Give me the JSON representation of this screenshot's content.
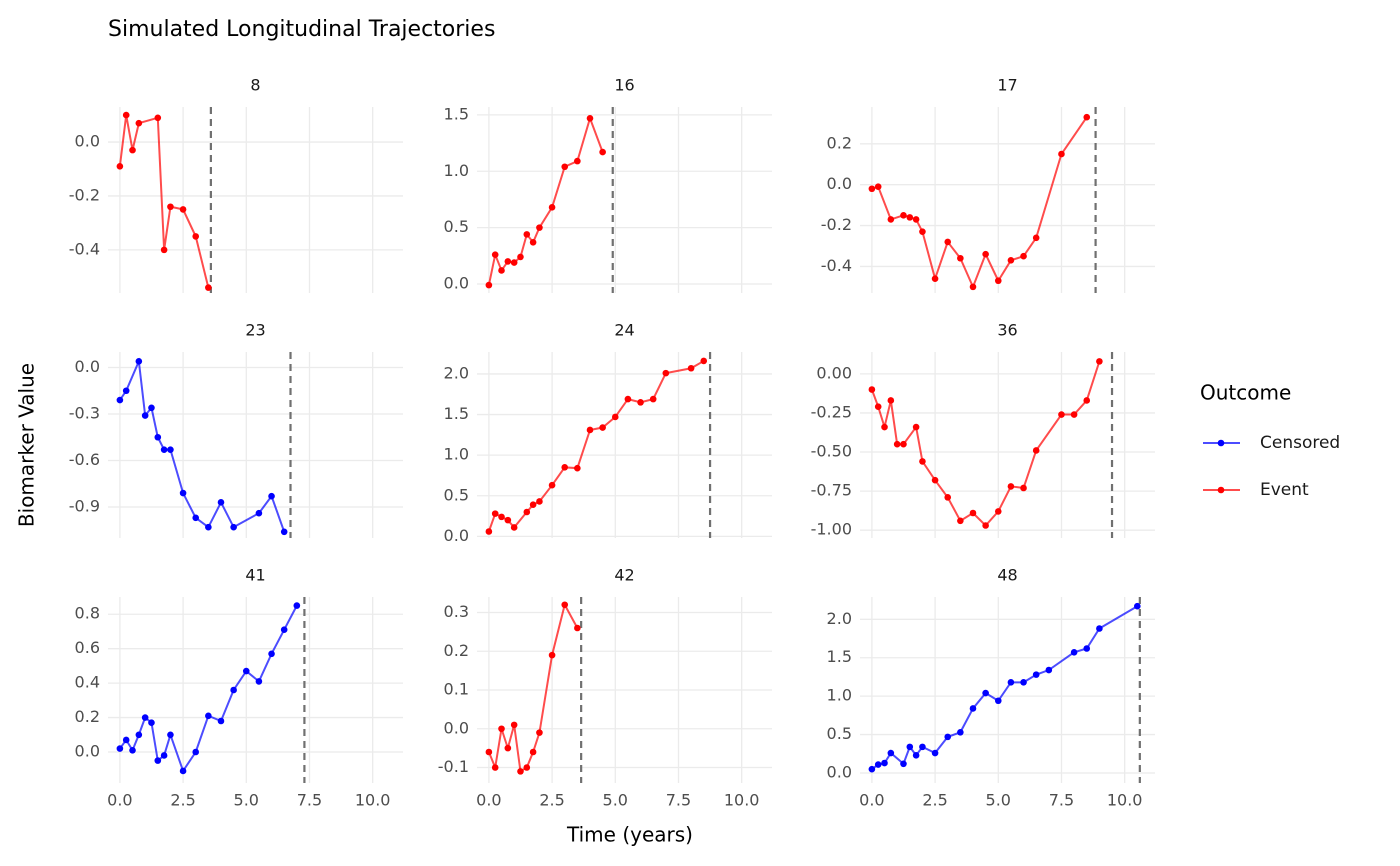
{
  "title": "Simulated Longitudinal Trajectories",
  "x_label": "Time (years)",
  "y_label": "Biomarker Value",
  "legend": {
    "title": "Outcome",
    "entries": [
      {
        "name": "Censored",
        "color": "#0000ff"
      },
      {
        "name": "Event",
        "color": "#ff0000"
      }
    ]
  },
  "chart_data": [
    {
      "type": "line",
      "title": "8",
      "x": [
        0,
        0.25,
        0.5,
        0.75,
        1.5,
        1.75,
        2,
        2.5,
        3,
        3.5
      ],
      "series": [
        {
          "name": "Event",
          "color": "#ff0000",
          "values": [
            -0.09,
            0.1,
            -0.03,
            0.07,
            0.09,
            -0.4,
            -0.24,
            -0.25,
            -0.35,
            -0.54
          ]
        }
      ],
      "event_time": 3.6,
      "xlim": [
        -0.47,
        11.2
      ],
      "xticks": [
        {
          "value": 0,
          "label": "0.0"
        },
        {
          "value": 2.5,
          "label": "2.5"
        },
        {
          "value": 5,
          "label": "5.0"
        },
        {
          "value": 7.5,
          "label": "7.5"
        },
        {
          "value": 10,
          "label": "10.0"
        }
      ],
      "ylim": [
        -0.56,
        0.13
      ],
      "yticks": [
        {
          "value": 0,
          "label": "0.0"
        },
        -0.2,
        -0.4
      ],
      "grid": true
    },
    {
      "type": "line",
      "title": "16",
      "x": [
        0,
        0.25,
        0.5,
        0.75,
        1,
        1.25,
        1.5,
        1.75,
        2,
        2.5,
        3,
        3.5,
        4,
        4.5
      ],
      "series": [
        {
          "name": "Event",
          "color": "#ff0000",
          "values": [
            -0.01,
            0.26,
            0.12,
            0.2,
            0.19,
            0.24,
            0.44,
            0.37,
            0.5,
            0.68,
            1.04,
            1.09,
            1.47,
            1.17
          ]
        }
      ],
      "event_time": 4.9,
      "xlim": [
        -0.47,
        11.2
      ],
      "xticks": [
        {
          "value": 0,
          "label": "0.0"
        },
        {
          "value": 2.5,
          "label": "2.5"
        },
        {
          "value": 5,
          "label": "5.0"
        },
        {
          "value": 7.5,
          "label": "7.5"
        },
        {
          "value": 10,
          "label": "10.0"
        }
      ],
      "ylim": [
        -0.08,
        1.57
      ],
      "yticks": [
        {
          "value": 0,
          "label": "0.0"
        },
        0.5,
        {
          "value": 1,
          "label": "1.0"
        },
        1.5
      ],
      "grid": true
    },
    {
      "type": "line",
      "title": "17",
      "x": [
        0,
        0.25,
        0.75,
        1.25,
        1.5,
        1.75,
        2,
        2.5,
        3,
        3.5,
        4,
        4.5,
        5,
        5.5,
        6,
        6.5,
        7.5,
        8.5
      ],
      "series": [
        {
          "name": "Event",
          "color": "#ff0000",
          "values": [
            -0.02,
            -0.01,
            -0.17,
            -0.15,
            -0.16,
            -0.17,
            -0.23,
            -0.46,
            -0.28,
            -0.36,
            -0.5,
            -0.34,
            -0.47,
            -0.37,
            -0.35,
            -0.26,
            0.15,
            0.33
          ]
        }
      ],
      "event_time": 8.85,
      "xlim": [
        -0.47,
        11.2
      ],
      "xticks": [
        {
          "value": 0,
          "label": "0.0"
        },
        {
          "value": 2.5,
          "label": "2.5"
        },
        {
          "value": 5,
          "label": "5.0"
        },
        {
          "value": 7.5,
          "label": "7.5"
        },
        {
          "value": 10,
          "label": "10.0"
        }
      ],
      "ylim": [
        -0.53,
        0.38
      ],
      "yticks": [
        0.2,
        {
          "value": 0,
          "label": "0.0"
        },
        -0.2,
        -0.4
      ],
      "grid": true
    },
    {
      "type": "line",
      "title": "23",
      "x": [
        0,
        0.25,
        0.75,
        1,
        1.25,
        1.5,
        1.75,
        2,
        2.5,
        3,
        3.5,
        4,
        4.5,
        5.5,
        6,
        6.5
      ],
      "series": [
        {
          "name": "Censored",
          "color": "#0000ff",
          "values": [
            -0.21,
            -0.15,
            0.04,
            -0.31,
            -0.26,
            -0.45,
            -0.53,
            -0.53,
            -0.81,
            -0.97,
            -1.03,
            -0.87,
            -1.03,
            -0.94,
            -0.83,
            -1.06
          ]
        }
      ],
      "event_time": 6.75,
      "xlim": [
        -0.47,
        11.2
      ],
      "xticks": [
        {
          "value": 0,
          "label": "0.0"
        },
        {
          "value": 2.5,
          "label": "2.5"
        },
        {
          "value": 5,
          "label": "5.0"
        },
        {
          "value": 7.5,
          "label": "7.5"
        },
        {
          "value": 10,
          "label": "10.0"
        }
      ],
      "ylim": [
        -1.1,
        0.1
      ],
      "yticks": [
        {
          "value": 0,
          "label": "0.0"
        },
        -0.3,
        -0.6,
        -0.9
      ],
      "grid": true
    },
    {
      "type": "line",
      "title": "24",
      "x": [
        0,
        0.25,
        0.5,
        0.75,
        1,
        1.5,
        1.75,
        2,
        2.5,
        3,
        3.5,
        4,
        4.5,
        5,
        5.5,
        6,
        6.5,
        7,
        8,
        8.5
      ],
      "series": [
        {
          "name": "Event",
          "color": "#ff0000",
          "values": [
            0.06,
            0.28,
            0.24,
            0.2,
            0.11,
            0.3,
            0.39,
            0.43,
            0.63,
            0.85,
            0.84,
            1.31,
            1.34,
            1.47,
            1.69,
            1.65,
            1.69,
            2.01,
            2.07,
            2.16
          ]
        }
      ],
      "event_time": 8.75,
      "xlim": [
        -0.47,
        11.2
      ],
      "xticks": [
        {
          "value": 0,
          "label": "0.0"
        },
        {
          "value": 2.5,
          "label": "2.5"
        },
        {
          "value": 5,
          "label": "5.0"
        },
        {
          "value": 7.5,
          "label": "7.5"
        },
        {
          "value": 10,
          "label": "10.0"
        }
      ],
      "ylim": [
        -0.02,
        2.27
      ],
      "yticks": [
        {
          "value": 0,
          "label": "0.0"
        },
        0.5,
        {
          "value": 1,
          "label": "1.0"
        },
        1.5,
        {
          "value": 2,
          "label": "2.0"
        }
      ],
      "grid": true
    },
    {
      "type": "line",
      "title": "36",
      "x": [
        0,
        0.25,
        0.5,
        0.75,
        1,
        1.25,
        1.75,
        2,
        2.5,
        3,
        3.5,
        4,
        4.5,
        5,
        5.5,
        6,
        6.5,
        7.5,
        8,
        8.5,
        9
      ],
      "series": [
        {
          "name": "Event",
          "color": "#ff0000",
          "values": [
            -0.1,
            -0.21,
            -0.34,
            -0.17,
            -0.45,
            -0.45,
            -0.34,
            -0.56,
            -0.68,
            -0.79,
            -0.94,
            -0.89,
            -0.97,
            -0.88,
            -0.72,
            -0.73,
            -0.49,
            -0.26,
            -0.26,
            -0.17,
            0.08
          ]
        }
      ],
      "event_time": 9.5,
      "xlim": [
        -0.47,
        11.2
      ],
      "xticks": [
        {
          "value": 0,
          "label": "0.0"
        },
        {
          "value": 2.5,
          "label": "2.5"
        },
        {
          "value": 5,
          "label": "5.0"
        },
        {
          "value": 7.5,
          "label": "7.5"
        },
        {
          "value": 10,
          "label": "10.0"
        }
      ],
      "ylim": [
        -1.05,
        0.14
      ],
      "yticks": [
        {
          "value": 0,
          "label": "0.00"
        },
        -0.25,
        {
          "value": -0.5,
          "label": "-0.50"
        },
        -0.75,
        {
          "value": -1,
          "label": "-1.00"
        }
      ],
      "grid": true
    },
    {
      "type": "line",
      "title": "41",
      "x": [
        0,
        0.25,
        0.5,
        0.75,
        1,
        1.25,
        1.5,
        1.75,
        2,
        2.5,
        3,
        3.5,
        4,
        4.5,
        5,
        5.5,
        6,
        6.5,
        7
      ],
      "series": [
        {
          "name": "Censored",
          "color": "#0000ff",
          "values": [
            0.02,
            0.07,
            0.01,
            0.1,
            0.2,
            0.17,
            -0.05,
            -0.02,
            0.1,
            -0.11,
            0,
            0.21,
            0.18,
            0.36,
            0.47,
            0.41,
            0.57,
            0.71,
            0.85
          ]
        }
      ],
      "event_time": 7.3,
      "xlim": [
        -0.47,
        11.2
      ],
      "xticks": [
        {
          "value": 0,
          "label": "0.0"
        },
        {
          "value": 2.5,
          "label": "2.5"
        },
        {
          "value": 5,
          "label": "5.0"
        },
        {
          "value": 7.5,
          "label": "7.5"
        },
        {
          "value": 10,
          "label": "10.0"
        }
      ],
      "ylim": [
        -0.18,
        0.9
      ],
      "yticks": [
        {
          "value": 0,
          "label": "0.0"
        },
        0.2,
        0.4,
        0.6,
        0.8
      ],
      "grid": true
    },
    {
      "type": "line",
      "title": "42",
      "x": [
        0,
        0.25,
        0.5,
        0.75,
        1,
        1.25,
        1.5,
        1.75,
        2,
        2.5,
        3,
        3.5
      ],
      "series": [
        {
          "name": "Event",
          "color": "#ff0000",
          "values": [
            -0.06,
            -0.1,
            0.0,
            -0.05,
            0.01,
            -0.11,
            -0.1,
            -0.06,
            -0.01,
            0.19,
            0.32,
            0.26
          ]
        }
      ],
      "event_time": 3.65,
      "xlim": [
        -0.47,
        11.2
      ],
      "xticks": [
        {
          "value": 0,
          "label": "0.0"
        },
        {
          "value": 2.5,
          "label": "2.5"
        },
        {
          "value": 5,
          "label": "5.0"
        },
        {
          "value": 7.5,
          "label": "7.5"
        },
        {
          "value": 10,
          "label": "10.0"
        }
      ],
      "ylim": [
        -0.14,
        0.34
      ],
      "yticks": [
        -0.1,
        {
          "value": 0,
          "label": "0.0"
        },
        0.1,
        0.2,
        0.3
      ],
      "grid": true
    },
    {
      "type": "line",
      "title": "48",
      "x": [
        0,
        0.25,
        0.5,
        0.75,
        1.25,
        1.5,
        1.75,
        2,
        2.5,
        3,
        3.5,
        4,
        4.5,
        5,
        5.5,
        6,
        6.5,
        7,
        8,
        8.5,
        9,
        10.5
      ],
      "series": [
        {
          "name": "Censored",
          "color": "#0000ff",
          "values": [
            0.05,
            0.11,
            0.13,
            0.26,
            0.12,
            0.34,
            0.23,
            0.34,
            0.26,
            0.47,
            0.53,
            0.84,
            1.04,
            0.94,
            1.18,
            1.18,
            1.28,
            1.34,
            1.57,
            1.62,
            1.88,
            2.17
          ]
        }
      ],
      "event_time": 10.6,
      "xlim": [
        -0.47,
        11.2
      ],
      "xticks": [
        {
          "value": 0,
          "label": "0.0"
        },
        {
          "value": 2.5,
          "label": "2.5"
        },
        {
          "value": 5,
          "label": "5.0"
        },
        {
          "value": 7.5,
          "label": "7.5"
        },
        {
          "value": 10,
          "label": "10.0"
        }
      ],
      "ylim": [
        -0.13,
        2.29
      ],
      "yticks": [
        {
          "value": 0,
          "label": "0.0"
        },
        0.5,
        {
          "value": 1,
          "label": "1.0"
        },
        1.5,
        {
          "value": 2,
          "label": "2.0"
        }
      ],
      "grid": true
    }
  ]
}
